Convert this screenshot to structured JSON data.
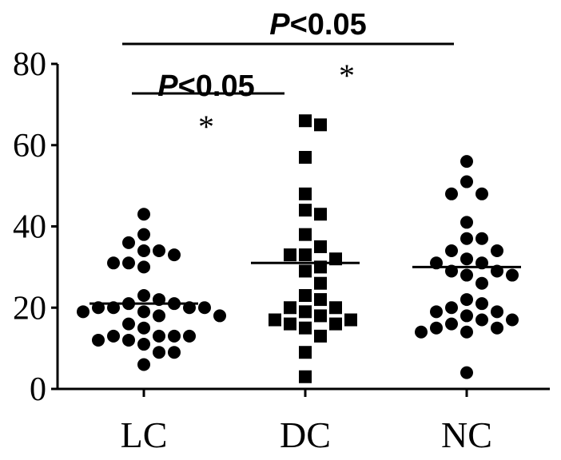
{
  "chart_data": {
    "type": "scatter",
    "categories": [
      "LC",
      "DC",
      "NC"
    ],
    "ylim": [
      0,
      80
    ],
    "yticks": [
      0,
      20,
      40,
      60,
      80
    ],
    "grid": false,
    "series": [
      {
        "category": "LC",
        "marker": "circle",
        "median": 21,
        "values": [
          43,
          38,
          34,
          34,
          36,
          33,
          31,
          30,
          31,
          23,
          22,
          21,
          21,
          20,
          20,
          20,
          20,
          19,
          19,
          18,
          18,
          16,
          15,
          13,
          13,
          13,
          13,
          12,
          12,
          11,
          9,
          9,
          6
        ]
      },
      {
        "category": "DC",
        "marker": "square",
        "median": 31,
        "values": [
          66,
          65,
          57,
          48,
          44,
          43,
          38,
          35,
          33,
          33,
          32,
          30,
          29,
          26,
          23,
          22,
          20,
          20,
          19,
          18,
          17,
          17,
          16,
          16,
          15,
          13,
          9,
          3
        ]
      },
      {
        "category": "NC",
        "marker": "circle",
        "median": 30,
        "values": [
          56,
          51,
          48,
          48,
          41,
          37,
          37,
          34,
          34,
          32,
          31,
          31,
          29,
          29,
          28,
          28,
          26,
          22,
          21,
          20,
          19,
          19,
          18,
          17,
          17,
          16,
          15,
          15,
          14,
          14,
          4
        ]
      }
    ],
    "annotations": [
      {
        "text": "P<0.05",
        "from": "LC",
        "to": "NC",
        "star": "*"
      },
      {
        "text": "P<0.05",
        "from": "LC",
        "to": "DC",
        "star": "*"
      }
    ]
  }
}
